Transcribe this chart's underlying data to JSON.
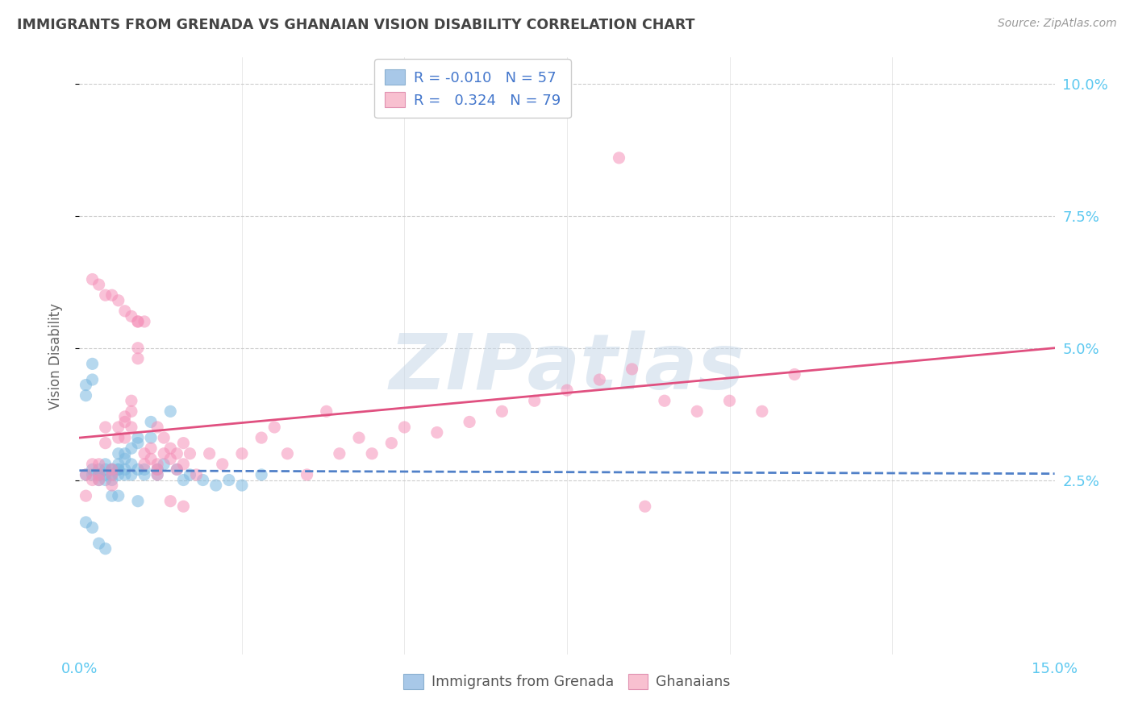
{
  "title": "IMMIGRANTS FROM GRENADA VS GHANAIAN VISION DISABILITY CORRELATION CHART",
  "source": "Source: ZipAtlas.com",
  "ylabel": "Vision Disability",
  "xlim": [
    0.0,
    0.15
  ],
  "ylim": [
    -0.008,
    0.105
  ],
  "ytick_vals": [
    0.025,
    0.05,
    0.075,
    0.1
  ],
  "ytick_labels": [
    "2.5%",
    "5.0%",
    "7.5%",
    "10.0%"
  ],
  "xtick_vals": [
    0.0,
    0.15
  ],
  "xtick_labels": [
    "0.0%",
    "15.0%"
  ],
  "series1_color": "#7ab8e0",
  "series2_color": "#f590b8",
  "trendline1_color": "#5080c8",
  "trendline2_color": "#e05080",
  "axis_label_color": "#5bc8f0",
  "title_color": "#444444",
  "grid_color": "#cccccc",
  "background_color": "#ffffff",
  "watermark_text": "ZIPatlas",
  "watermark_color": "#c8d8e8",
  "legend1_label": "Immigrants from Grenada",
  "legend2_label": "Ghanaians",
  "grenada_trendline_start_y": 0.0268,
  "grenada_trendline_end_y": 0.0262,
  "ghana_trendline_start_y": 0.033,
  "ghana_trendline_end_y": 0.05,
  "grenada_x": [
    0.001,
    0.001,
    0.001,
    0.002,
    0.002,
    0.002,
    0.002,
    0.003,
    0.003,
    0.003,
    0.003,
    0.004,
    0.004,
    0.004,
    0.004,
    0.005,
    0.005,
    0.005,
    0.005,
    0.006,
    0.006,
    0.006,
    0.006,
    0.006,
    0.007,
    0.007,
    0.007,
    0.007,
    0.008,
    0.008,
    0.008,
    0.009,
    0.009,
    0.009,
    0.01,
    0.01,
    0.011,
    0.011,
    0.012,
    0.012,
    0.013,
    0.014,
    0.015,
    0.016,
    0.017,
    0.019,
    0.021,
    0.023,
    0.025,
    0.028,
    0.001,
    0.002,
    0.003,
    0.004,
    0.005,
    0.006,
    0.009
  ],
  "grenada_y": [
    0.043,
    0.041,
    0.026,
    0.047,
    0.044,
    0.027,
    0.026,
    0.027,
    0.026,
    0.026,
    0.025,
    0.028,
    0.027,
    0.026,
    0.025,
    0.027,
    0.027,
    0.025,
    0.026,
    0.028,
    0.027,
    0.027,
    0.03,
    0.026,
    0.026,
    0.027,
    0.03,
    0.029,
    0.028,
    0.026,
    0.031,
    0.027,
    0.033,
    0.032,
    0.026,
    0.027,
    0.033,
    0.036,
    0.027,
    0.026,
    0.028,
    0.038,
    0.027,
    0.025,
    0.026,
    0.025,
    0.024,
    0.025,
    0.024,
    0.026,
    0.017,
    0.016,
    0.013,
    0.012,
    0.022,
    0.022,
    0.021
  ],
  "ghana_x": [
    0.001,
    0.001,
    0.002,
    0.002,
    0.003,
    0.003,
    0.003,
    0.004,
    0.004,
    0.005,
    0.005,
    0.005,
    0.006,
    0.006,
    0.007,
    0.007,
    0.007,
    0.008,
    0.008,
    0.008,
    0.009,
    0.009,
    0.009,
    0.01,
    0.01,
    0.011,
    0.011,
    0.012,
    0.012,
    0.012,
    0.013,
    0.013,
    0.014,
    0.014,
    0.015,
    0.015,
    0.016,
    0.016,
    0.017,
    0.018,
    0.02,
    0.022,
    0.025,
    0.028,
    0.03,
    0.032,
    0.035,
    0.038,
    0.04,
    0.043,
    0.045,
    0.048,
    0.05,
    0.055,
    0.06,
    0.065,
    0.07,
    0.075,
    0.08,
    0.085,
    0.09,
    0.095,
    0.1,
    0.105,
    0.11,
    0.002,
    0.003,
    0.004,
    0.005,
    0.006,
    0.007,
    0.008,
    0.009,
    0.01,
    0.012,
    0.014,
    0.016,
    0.083,
    0.087
  ],
  "ghana_y": [
    0.022,
    0.026,
    0.028,
    0.025,
    0.026,
    0.025,
    0.028,
    0.032,
    0.035,
    0.026,
    0.024,
    0.027,
    0.035,
    0.033,
    0.037,
    0.036,
    0.033,
    0.04,
    0.038,
    0.035,
    0.055,
    0.05,
    0.048,
    0.03,
    0.028,
    0.031,
    0.029,
    0.028,
    0.027,
    0.026,
    0.033,
    0.03,
    0.031,
    0.029,
    0.03,
    0.027,
    0.032,
    0.028,
    0.03,
    0.026,
    0.03,
    0.028,
    0.03,
    0.033,
    0.035,
    0.03,
    0.026,
    0.038,
    0.03,
    0.033,
    0.03,
    0.032,
    0.035,
    0.034,
    0.036,
    0.038,
    0.04,
    0.042,
    0.044,
    0.046,
    0.04,
    0.038,
    0.04,
    0.038,
    0.045,
    0.063,
    0.062,
    0.06,
    0.06,
    0.059,
    0.057,
    0.056,
    0.055,
    0.055,
    0.035,
    0.021,
    0.02,
    0.086,
    0.02
  ]
}
